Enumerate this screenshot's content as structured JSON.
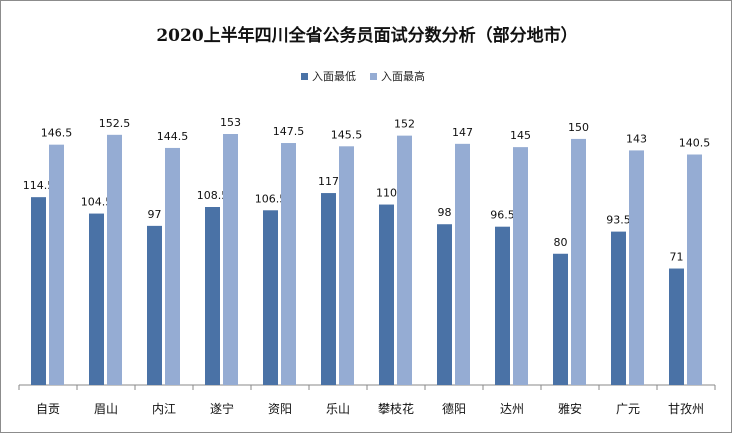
{
  "chart_data": {
    "type": "bar",
    "title": "2020上半年四川全省公务员面试分数分析（部分地市）",
    "categories": [
      "自贡",
      "眉山",
      "内江",
      "遂宁",
      "资阳",
      "乐山",
      "攀枝花",
      "德阳",
      "达州",
      "雅安",
      "广元",
      "甘孜州"
    ],
    "series": [
      {
        "name": "入面最低",
        "color": "#4a72a6",
        "values": [
          114.5,
          104.5,
          97,
          108.5,
          106.5,
          117,
          110,
          98,
          96.5,
          80,
          93.5,
          71
        ]
      },
      {
        "name": "入面最高",
        "color": "#95acd3",
        "values": [
          146.5,
          152.5,
          144.5,
          153,
          147.5,
          145.5,
          152,
          147,
          145,
          150,
          143,
          140.5
        ]
      }
    ],
    "ylim": [
      0,
      170
    ],
    "legend": "top-center",
    "grid": false
  }
}
